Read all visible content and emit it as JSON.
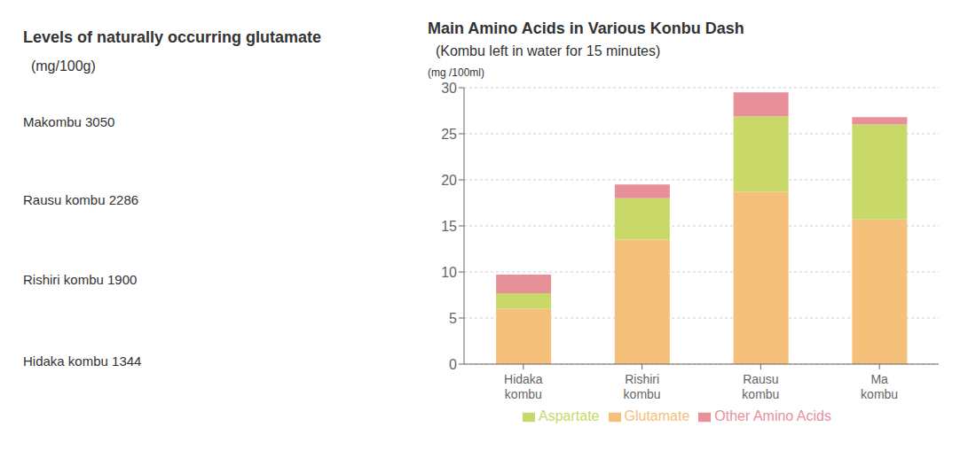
{
  "chart_data": {
    "type": "bar",
    "title": "Main Amino Acids in Various Konbu Dash",
    "subtitle": "  (Kombu left in water for 15 minutes)",
    "y_label": "(mg /100ml)",
    "annotations": [
      "Levels of naturally occurring glutamate",
      "  (mg/100g)",
      "Makombu 3050",
      "Rausu kombu 2286",
      "Rishiri kombu 1900",
      "Hidaka kombu 1344"
    ],
    "categories": [
      "Hidaka\nkombu",
      "Rishiri\nkombu",
      "Rausu\nkombu",
      "Ma\nkombu"
    ],
    "series": [
      {
        "name": "Glutamate",
        "color": "#F4C07A",
        "values": [
          6.0,
          13.5,
          18.7,
          15.7
        ]
      },
      {
        "name": "Aspartate",
        "color": "#C8D96A",
        "values": [
          1.7,
          4.5,
          8.2,
          10.3
        ]
      },
      {
        "name": "Other Amino Acids",
        "color": "#E8909A",
        "values": [
          2.0,
          1.5,
          2.6,
          0.8
        ]
      }
    ],
    "ylim": [
      0,
      30
    ],
    "yticks": [
      0,
      5,
      10,
      15,
      20,
      25,
      30
    ],
    "grid": true,
    "legend": "bottom",
    "stacked": true
  }
}
